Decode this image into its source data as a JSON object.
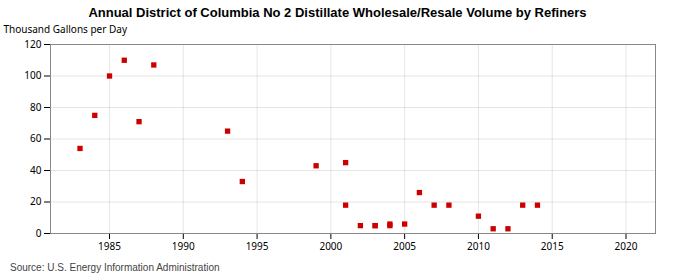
{
  "chart_data": {
    "type": "scatter",
    "title": "Annual District of Columbia No 2 Distillate Wholesale/Resale Volume by Refiners",
    "ylabel": "Thousand Gallons per Day",
    "source": "Source: U.S. Energy Information Administration",
    "x": [
      1983,
      1984,
      1985,
      1986,
      1987,
      1988,
      1993,
      1994,
      1999,
      2001,
      2001,
      2002,
      2003,
      2003,
      2004,
      2004,
      2005,
      2006,
      2007,
      2008,
      2010,
      2011,
      2012,
      2013,
      2014
    ],
    "values": [
      54,
      75,
      100,
      110,
      71,
      107,
      65,
      33,
      43,
      18,
      45,
      5,
      5,
      5,
      5,
      6,
      6,
      26,
      18,
      18,
      11,
      3,
      3,
      18,
      18
    ],
    "color": "#cc0000",
    "marker": "square",
    "xlim": [
      1981,
      2022
    ],
    "ylim": [
      0,
      120
    ],
    "xticks": [
      1985,
      1990,
      1995,
      2000,
      2005,
      2010,
      2015,
      2020
    ],
    "yticks": [
      0,
      20,
      40,
      60,
      80,
      100,
      120
    ],
    "grid": true
  }
}
